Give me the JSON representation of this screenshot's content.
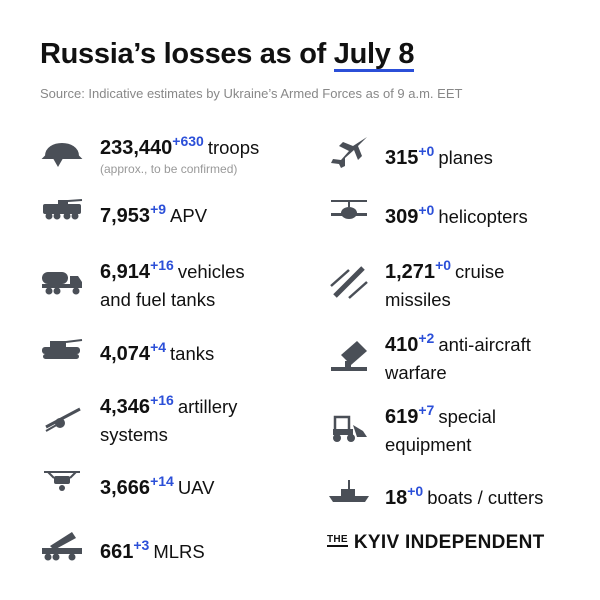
{
  "header": {
    "title_prefix": "Russia’s losses as of",
    "title_date": "July 8",
    "source": "Source: Indicative estimates by Ukraine’s Armed Forces as of 9 a.m. EET"
  },
  "accent_color": "#2b4fd8",
  "icon_color": "#4a4f57",
  "left": [
    {
      "icon": "helmet-icon",
      "value": "233,440",
      "delta": "+630",
      "label": "troops",
      "note": "(approx., to be confirmed)"
    },
    {
      "icon": "apv-icon",
      "value": "7,953",
      "delta": "+9",
      "label": "APV"
    },
    {
      "icon": "fuel-truck-icon",
      "value": "6,914",
      "delta": "+16",
      "label": "vehicles",
      "label2": "and fuel tanks"
    },
    {
      "icon": "tank-icon",
      "value": "4,074",
      "delta": "+4",
      "label": "tanks"
    },
    {
      "icon": "artillery-icon",
      "value": "4,346",
      "delta": "+16",
      "label": "artillery",
      "label2": "systems"
    },
    {
      "icon": "drone-icon",
      "value": "3,666",
      "delta": "+14",
      "label": "UAV"
    },
    {
      "icon": "mlrs-icon",
      "value": "661",
      "delta": "+3",
      "label": "MLRS"
    }
  ],
  "right": [
    {
      "icon": "plane-icon",
      "value": "315",
      "delta": "+0",
      "label": "planes"
    },
    {
      "icon": "helicopter-icon",
      "value": "309",
      "delta": "+0",
      "label": "helicopters"
    },
    {
      "icon": "missile-icon",
      "value": "1,271",
      "delta": "+0",
      "label": "cruise",
      "label2": "missiles"
    },
    {
      "icon": "anti-aircraft-icon",
      "value": "410",
      "delta": "+2",
      "label": "anti-aircraft",
      "label2": "warfare"
    },
    {
      "icon": "loader-icon",
      "value": "619",
      "delta": "+7",
      "label": "special",
      "label2": "equipment"
    },
    {
      "icon": "ship-icon",
      "value": "18",
      "delta": "+0",
      "label": "boats / cutters"
    }
  ],
  "logo": {
    "the": "THE",
    "name": "KYIV INDEPENDENT"
  }
}
